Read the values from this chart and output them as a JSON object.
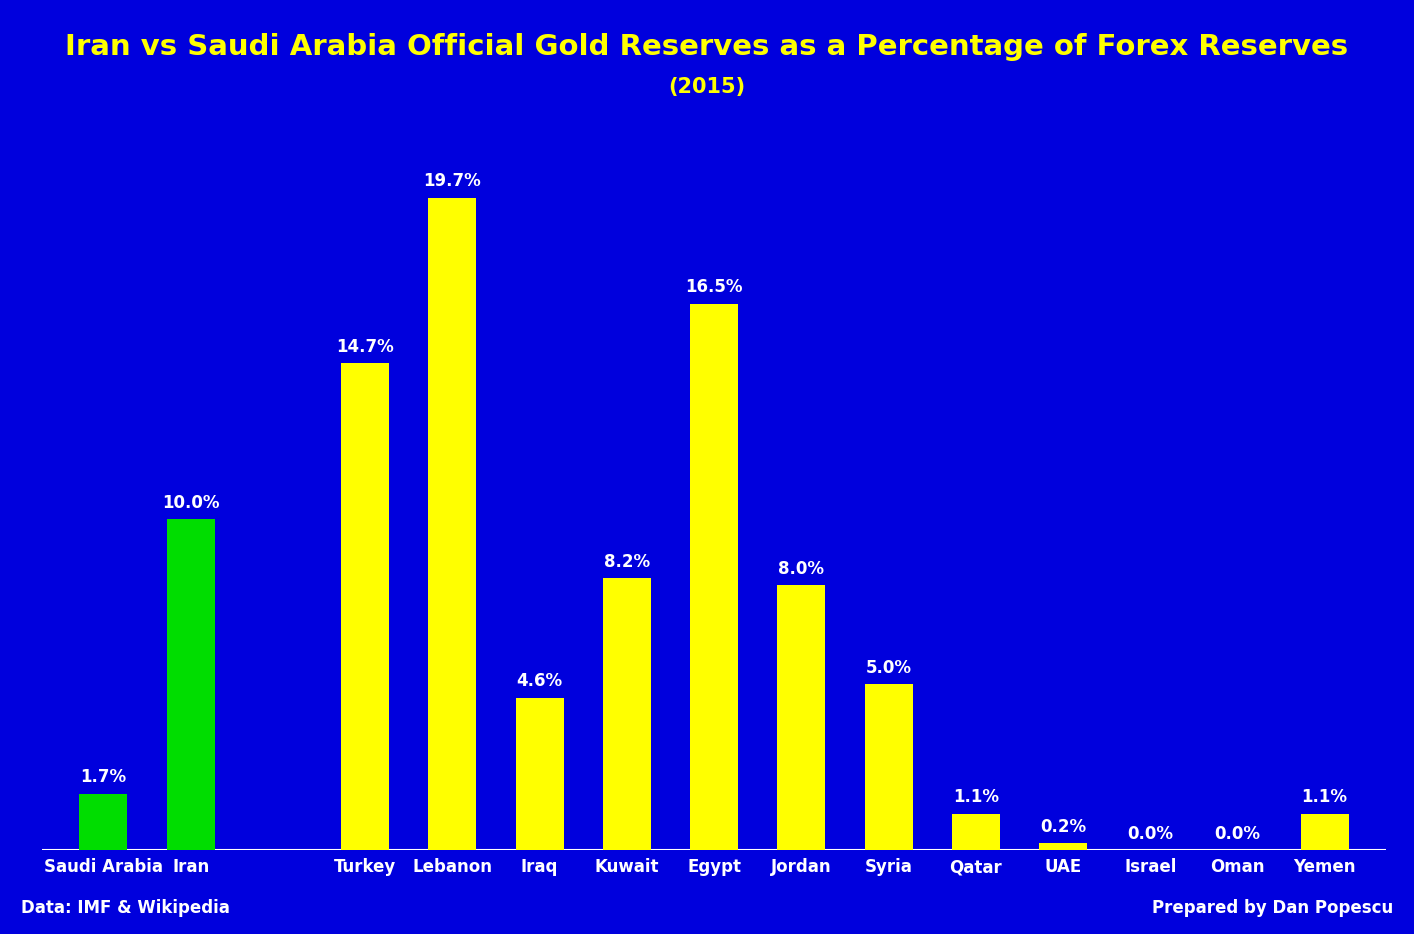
{
  "title": "Iran vs Saudi Arabia Official Gold Reserves as a Percentage of Forex Reserves",
  "subtitle": "(2015)",
  "categories": [
    "Saudi Arabia",
    "Iran",
    "",
    "Turkey",
    "Lebanon",
    "Iraq",
    "Kuwait",
    "Egypt",
    "Jordan",
    "Syria",
    "Qatar",
    "UAE",
    "Israel",
    "Oman",
    "Yemen"
  ],
  "values": [
    1.7,
    10.0,
    0,
    14.7,
    19.7,
    4.6,
    8.2,
    16.5,
    8.0,
    5.0,
    1.1,
    0.2,
    0.0,
    0.0,
    1.1
  ],
  "display_labels": [
    "Saudi Arabia",
    "Iran",
    "Turkey",
    "Lebanon",
    "Iraq",
    "Kuwait",
    "Egypt",
    "Jordan",
    "Syria",
    "Qatar",
    "UAE",
    "Israel",
    "Oman",
    "Yemen"
  ],
  "display_values": [
    1.7,
    10.0,
    14.7,
    19.7,
    4.6,
    8.2,
    16.5,
    8.0,
    5.0,
    1.1,
    0.2,
    0.0,
    0.0,
    1.1
  ],
  "bar_positions": [
    0,
    1,
    3,
    4,
    5,
    6,
    7,
    8,
    9,
    10,
    11,
    12,
    13,
    14
  ],
  "bar_colors": [
    "#00dd00",
    "#00dd00",
    "#ffff00",
    "#ffff00",
    "#ffff00",
    "#ffff00",
    "#ffff00",
    "#ffff00",
    "#ffff00",
    "#ffff00",
    "#ffff00",
    "#ffff00",
    "#ffff00",
    "#ffff00"
  ],
  "background_color": "#0000dd",
  "title_color": "#ffff00",
  "subtitle_color": "#ffff00",
  "label_color": "#ffffff",
  "bar_label_color": "#ffffff",
  "footer_left": "Data: IMF & Wikipedia",
  "footer_right": "Prepared by Dan Popescu",
  "footer_color": "#ffffff",
  "title_fontsize": 21,
  "subtitle_fontsize": 15,
  "label_fontsize": 12,
  "bar_label_fontsize": 12,
  "footer_fontsize": 12,
  "ylim": [
    0,
    22
  ],
  "bar_width": 0.55
}
